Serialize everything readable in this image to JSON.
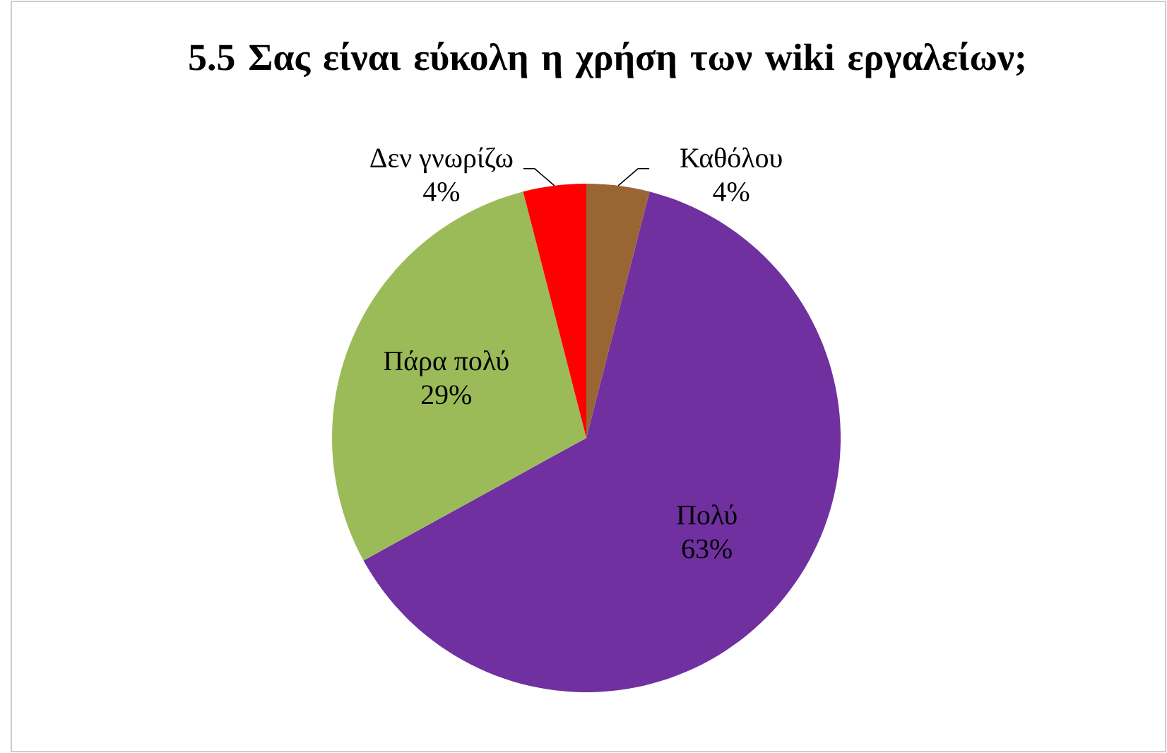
{
  "chart_data": {
    "type": "pie",
    "title": "5.5 Σας είναι εύκολη η χρήση των wiki εργαλείων;",
    "categories": [
      "Καθόλου",
      "Πολύ",
      "Πάρα πολύ",
      "Δεν γνωρίζω"
    ],
    "values": [
      4,
      63,
      29,
      4
    ],
    "value_labels": [
      "4%",
      "63%",
      "29%",
      "4%"
    ],
    "colors": [
      "#996633",
      "#7030a0",
      "#9bbb59",
      "#ff0000"
    ]
  }
}
